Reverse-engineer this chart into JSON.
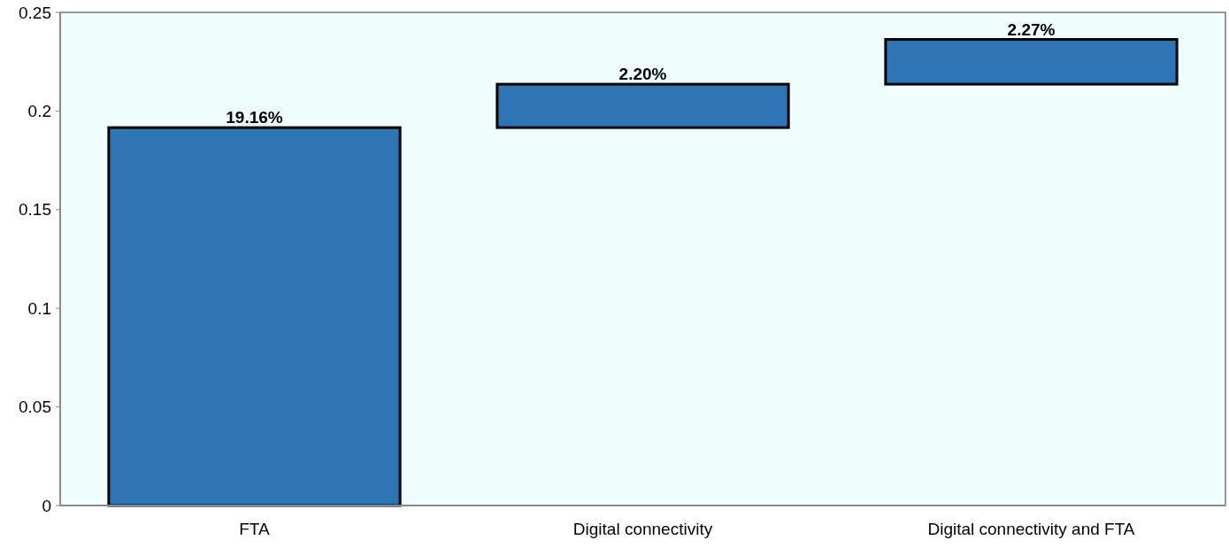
{
  "chart_data": {
    "type": "bar",
    "categories": [
      "FTA",
      "Digital connectivity",
      "Digital connectivity and FTA"
    ],
    "values": [
      0.1916,
      0.022,
      0.0227
    ],
    "base": [
      0,
      0.1916,
      0.2136
    ],
    "value_labels": [
      "19.16%",
      "2.20%",
      "2.27%"
    ],
    "color": "#2e75b6",
    "ylim": [
      0,
      0.25
    ],
    "yticks": [
      0,
      0.05,
      0.1,
      0.15,
      0.2,
      0.25
    ]
  }
}
